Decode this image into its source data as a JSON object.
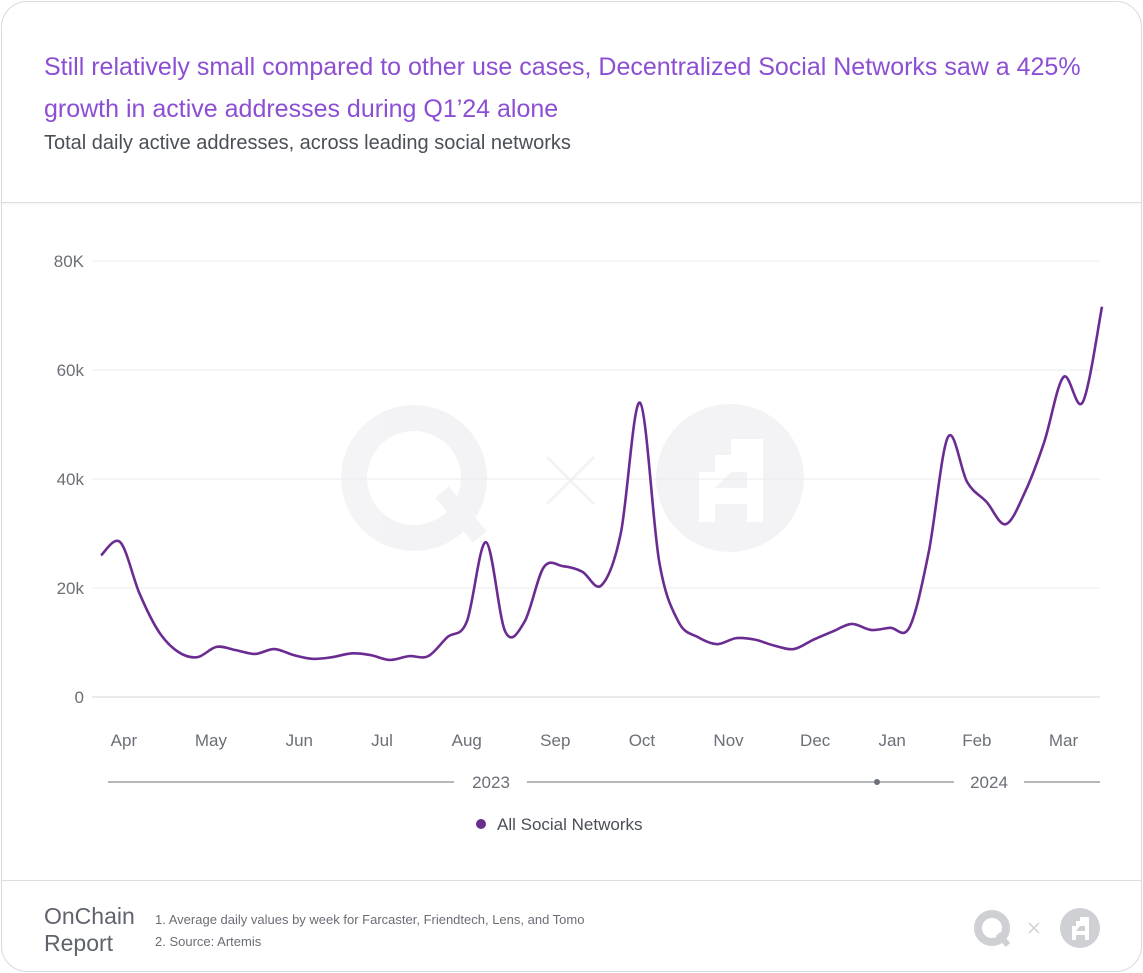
{
  "header": {
    "title": "Still relatively small compared to other use cases, Decentralized Social Networks saw a 425% growth in active addresses during Q1’24 alone",
    "subtitle": "Total daily active addresses, across leading social networks"
  },
  "chart_data": {
    "type": "line",
    "title": "Still relatively small compared to other use cases, Decentralized Social Networks saw a 425% growth in active addresses during Q1’24 alone",
    "subtitle": "Total daily active addresses, across leading social networks",
    "xlabel": "",
    "ylabel": "",
    "ylim": [
      0,
      80000
    ],
    "y_ticks": [
      {
        "v": 0,
        "label": "0"
      },
      {
        "v": 20000,
        "label": "20k"
      },
      {
        "v": 40000,
        "label": "40k"
      },
      {
        "v": 60000,
        "label": "60k"
      },
      {
        "v": 80000,
        "label": "80K"
      }
    ],
    "x_unit": "week index",
    "x_ticks": [
      {
        "w": 1.19,
        "label": "Apr"
      },
      {
        "w": 5.71,
        "label": "May"
      },
      {
        "w": 10.3,
        "label": "Jun"
      },
      {
        "w": 14.6,
        "label": "Jul"
      },
      {
        "w": 19.0,
        "label": "Aug"
      },
      {
        "w": 23.6,
        "label": "Sep"
      },
      {
        "w": 28.1,
        "label": "Oct"
      },
      {
        "w": 32.6,
        "label": "Nov"
      },
      {
        "w": 37.1,
        "label": "Dec"
      },
      {
        "w": 41.1,
        "label": "Jan"
      },
      {
        "w": 45.5,
        "label": "Feb"
      },
      {
        "w": 50.0,
        "label": "Mar"
      }
    ],
    "years": [
      {
        "label": "2023"
      },
      {
        "label": "2024"
      }
    ],
    "grid": true,
    "legend_position": "bottom-center",
    "series": [
      {
        "name": "All Social Networks",
        "color": "#6a2c91",
        "values": [
          26000,
          28400,
          19000,
          12000,
          8300,
          7300,
          9200,
          8600,
          7900,
          8800,
          7700,
          7000,
          7300,
          8000,
          7700,
          6800,
          7500,
          7500,
          11000,
          13800,
          28400,
          12000,
          13800,
          23800,
          24000,
          23000,
          20500,
          30000,
          54000,
          24800,
          13800,
          11000,
          9700,
          10800,
          10500,
          9400,
          8800,
          10500,
          12000,
          13400,
          12300,
          12700,
          12800,
          26600,
          47700,
          39400,
          35800,
          31700,
          37600,
          46800,
          58700,
          54100,
          71600
        ]
      }
    ]
  },
  "footer": {
    "brand_line1": "OnChain",
    "brand_line2": "Report",
    "note1": "1. Average daily values by week for Farcaster, Friendtech, Lens, and Tomo",
    "note2": "2. Source: Artemis"
  }
}
